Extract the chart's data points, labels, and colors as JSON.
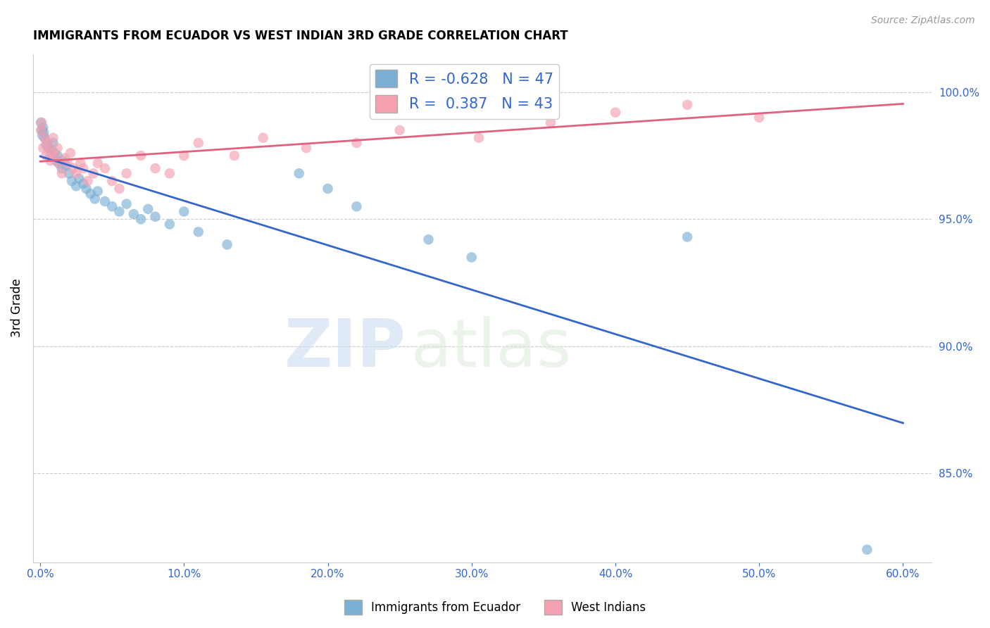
{
  "title": "IMMIGRANTS FROM ECUADOR VS WEST INDIAN 3RD GRADE CORRELATION CHART",
  "source": "Source: ZipAtlas.com",
  "xlabel_ticks": [
    0.0,
    10.0,
    20.0,
    30.0,
    40.0,
    50.0,
    60.0
  ],
  "ylabel_ticks": [
    85.0,
    90.0,
    95.0,
    100.0
  ],
  "ylabel_label": "3rd Grade",
  "xlim": [
    -0.5,
    62
  ],
  "ylim": [
    81.5,
    101.5
  ],
  "ecuador_R": -0.628,
  "ecuador_N": 47,
  "westindian_R": 0.387,
  "westindian_N": 43,
  "ecuador_color": "#7bafd4",
  "westindian_color": "#f4a0b0",
  "ecuador_line_color": "#3366cc",
  "westindian_line_color": "#e06080",
  "background_color": "#ffffff",
  "watermark_zip": "ZIP",
  "watermark_atlas": "atlas",
  "ecuador_x": [
    0.05,
    0.1,
    0.15,
    0.2,
    0.25,
    0.3,
    0.4,
    0.5,
    0.6,
    0.7,
    0.8,
    0.9,
    1.0,
    1.1,
    1.2,
    1.3,
    1.5,
    1.6,
    1.8,
    2.0,
    2.2,
    2.5,
    2.7,
    3.0,
    3.2,
    3.5,
    3.8,
    4.0,
    4.5,
    5.0,
    5.5,
    6.0,
    6.5,
    7.0,
    7.5,
    8.0,
    9.0,
    10.0,
    11.0,
    13.0,
    18.0,
    20.0,
    22.0,
    27.0,
    30.0,
    45.0,
    57.5
  ],
  "ecuador_y": [
    98.8,
    98.5,
    98.3,
    98.6,
    98.4,
    98.2,
    97.9,
    98.0,
    97.8,
    97.5,
    97.7,
    98.0,
    97.6,
    97.3,
    97.5,
    97.2,
    97.0,
    97.3,
    97.1,
    96.8,
    96.5,
    96.3,
    96.6,
    96.4,
    96.2,
    96.0,
    95.8,
    96.1,
    95.7,
    95.5,
    95.3,
    95.6,
    95.2,
    95.0,
    95.4,
    95.1,
    94.8,
    95.3,
    94.5,
    94.0,
    96.8,
    96.2,
    95.5,
    94.2,
    93.5,
    94.3,
    82.0
  ],
  "westindian_x": [
    0.05,
    0.1,
    0.2,
    0.3,
    0.4,
    0.5,
    0.6,
    0.7,
    0.8,
    0.9,
    1.0,
    1.2,
    1.3,
    1.5,
    1.7,
    1.9,
    2.1,
    2.3,
    2.5,
    2.8,
    3.0,
    3.3,
    3.7,
    4.0,
    4.5,
    5.0,
    5.5,
    6.0,
    7.0,
    8.0,
    9.0,
    10.0,
    11.0,
    13.5,
    15.5,
    18.5,
    22.0,
    25.0,
    30.5,
    35.5,
    40.0,
    45.0,
    50.0
  ],
  "westindian_y": [
    98.5,
    98.8,
    97.8,
    98.2,
    97.5,
    98.0,
    97.8,
    97.3,
    97.6,
    98.2,
    97.5,
    97.8,
    97.2,
    96.8,
    97.4,
    97.2,
    97.6,
    97.0,
    96.8,
    97.2,
    97.0,
    96.5,
    96.8,
    97.2,
    97.0,
    96.5,
    96.2,
    96.8,
    97.5,
    97.0,
    96.8,
    97.5,
    98.0,
    97.5,
    98.2,
    97.8,
    98.0,
    98.5,
    98.2,
    98.8,
    99.2,
    99.5,
    99.0
  ]
}
